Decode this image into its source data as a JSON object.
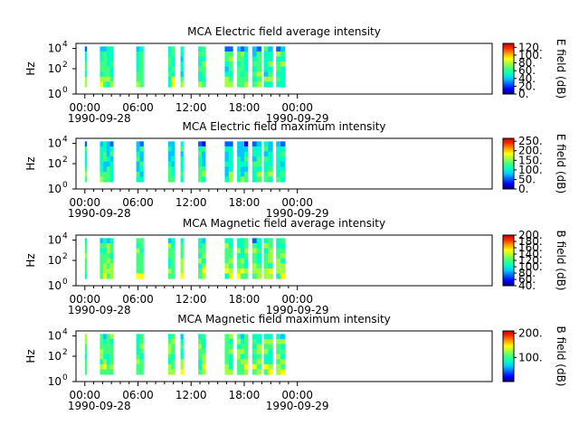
{
  "colors": {
    "rainbow": [
      "#00008f",
      "#0000ff",
      "#0060ff",
      "#00c8ff",
      "#00ffc0",
      "#40ff80",
      "#a0ff40",
      "#ffff00",
      "#ffa000",
      "#ff3000",
      "#c00000"
    ],
    "axis": "#000000",
    "background": "#ffffff"
  },
  "chart_data": [
    {
      "type": "heatmap",
      "title": "MCA  Electric field average intensity",
      "ylabel": "Hz",
      "colorbar_label": "E field (dB)",
      "colorbar_ticks": [
        "0.",
        "20.",
        "40.",
        "60.",
        "80.",
        "100.",
        "120."
      ],
      "colorbar_range": [
        0,
        130
      ],
      "y_scale": "log",
      "y_ticks": [
        {
          "label": "10",
          "exp": "0"
        },
        {
          "label": "10",
          "exp": "2"
        },
        {
          "label": "10",
          "exp": "4"
        }
      ],
      "xlim_hours": [
        -1,
        46
      ],
      "x_ticks": [
        {
          "hour": 0,
          "label": "00:00"
        },
        {
          "hour": 6,
          "label": "06:00"
        },
        {
          "hour": 12,
          "label": "12:00"
        },
        {
          "hour": 18,
          "label": "18:00"
        },
        {
          "hour": 24,
          "label": "00:00"
        }
      ],
      "date_labels": [
        "1990-09-28",
        "1990-09-29"
      ],
      "segments_hours": [
        [
          0,
          0.1
        ],
        [
          1.7,
          3.2
        ],
        [
          5.8,
          6.6
        ],
        [
          9.4,
          10.1
        ],
        [
          10.8,
          11.1
        ],
        [
          12.8,
          13.6
        ],
        [
          15.8,
          16.7
        ],
        [
          17.2,
          18.4
        ],
        [
          18.9,
          19.9
        ],
        [
          20.2,
          21.2
        ],
        [
          21.6,
          22.6
        ]
      ],
      "level": 0.45
    },
    {
      "type": "heatmap",
      "title": "MCA  Electric field maximum intensity",
      "ylabel": "Hz",
      "colorbar_label": "E field (dB)",
      "colorbar_ticks": [
        "0.",
        "50.",
        "100.",
        "150.",
        "200.",
        "250."
      ],
      "colorbar_range": [
        0,
        265
      ],
      "y_scale": "log",
      "y_ticks": [
        {
          "label": "10",
          "exp": "0"
        },
        {
          "label": "10",
          "exp": "2"
        },
        {
          "label": "10",
          "exp": "4"
        }
      ],
      "xlim_hours": [
        -1,
        46
      ],
      "x_ticks": [
        {
          "hour": 0,
          "label": "00:00"
        },
        {
          "hour": 6,
          "label": "06:00"
        },
        {
          "hour": 12,
          "label": "12:00"
        },
        {
          "hour": 18,
          "label": "18:00"
        },
        {
          "hour": 24,
          "label": "00:00"
        }
      ],
      "date_labels": [
        "1990-09-28",
        "1990-09-29"
      ],
      "segments_hours": [
        [
          0,
          0.1
        ],
        [
          1.7,
          3.2
        ],
        [
          5.8,
          6.6
        ],
        [
          9.4,
          10.1
        ],
        [
          10.8,
          11.1
        ],
        [
          12.8,
          13.6
        ],
        [
          15.8,
          16.7
        ],
        [
          17.2,
          18.4
        ],
        [
          18.9,
          19.9
        ],
        [
          20.2,
          21.2
        ],
        [
          21.6,
          22.6
        ]
      ],
      "level": 0.38
    },
    {
      "type": "heatmap",
      "title": "MCA  Magnetic field average intensity",
      "ylabel": "Hz",
      "colorbar_label": "B field (dB)",
      "colorbar_ticks": [
        "40.",
        "60.",
        "80.",
        "100.",
        "120.",
        "140.",
        "160.",
        "180.",
        "200."
      ],
      "colorbar_range": [
        40,
        200
      ],
      "y_scale": "log",
      "y_ticks": [
        {
          "label": "10",
          "exp": "0"
        },
        {
          "label": "10",
          "exp": "2"
        },
        {
          "label": "10",
          "exp": "4"
        }
      ],
      "xlim_hours": [
        -1,
        46
      ],
      "x_ticks": [
        {
          "hour": 0,
          "label": "00:00"
        },
        {
          "hour": 6,
          "label": "06:00"
        },
        {
          "hour": 12,
          "label": "12:00"
        },
        {
          "hour": 18,
          "label": "18:00"
        },
        {
          "hour": 24,
          "label": "00:00"
        }
      ],
      "date_labels": [
        "1990-09-28",
        "1990-09-29"
      ],
      "segments_hours": [
        [
          0,
          0.1
        ],
        [
          1.7,
          3.2
        ],
        [
          5.8,
          6.6
        ],
        [
          9.4,
          10.1
        ],
        [
          10.8,
          11.1
        ],
        [
          12.8,
          13.6
        ],
        [
          15.8,
          16.7
        ],
        [
          17.2,
          18.4
        ],
        [
          18.9,
          19.9
        ],
        [
          20.2,
          21.2
        ],
        [
          21.6,
          22.6
        ]
      ],
      "level": 0.5
    },
    {
      "type": "heatmap",
      "title": "MCA  Magnetic field maximum intensity",
      "ylabel": "Hz",
      "colorbar_label": "B field (dB)",
      "colorbar_ticks": [
        "100.",
        "200."
      ],
      "colorbar_range": [
        0,
        210
      ],
      "y_scale": "log",
      "y_ticks": [
        {
          "label": "10",
          "exp": "0"
        },
        {
          "label": "10",
          "exp": "2"
        },
        {
          "label": "10",
          "exp": "4"
        }
      ],
      "xlim_hours": [
        -1,
        46
      ],
      "x_ticks": [
        {
          "hour": 0,
          "label": "00:00"
        },
        {
          "hour": 6,
          "label": "06:00"
        },
        {
          "hour": 12,
          "label": "12:00"
        },
        {
          "hour": 18,
          "label": "18:00"
        },
        {
          "hour": 24,
          "label": "00:00"
        }
      ],
      "date_labels": [
        "1990-09-28",
        "1990-09-29"
      ],
      "segments_hours": [
        [
          0,
          0.1
        ],
        [
          1.7,
          3.2
        ],
        [
          5.8,
          6.6
        ],
        [
          9.4,
          10.1
        ],
        [
          10.8,
          11.1
        ],
        [
          12.8,
          13.6
        ],
        [
          15.8,
          16.7
        ],
        [
          17.2,
          18.4
        ],
        [
          18.9,
          19.9
        ],
        [
          20.2,
          21.2
        ],
        [
          21.6,
          22.6
        ]
      ],
      "level": 0.5
    }
  ]
}
